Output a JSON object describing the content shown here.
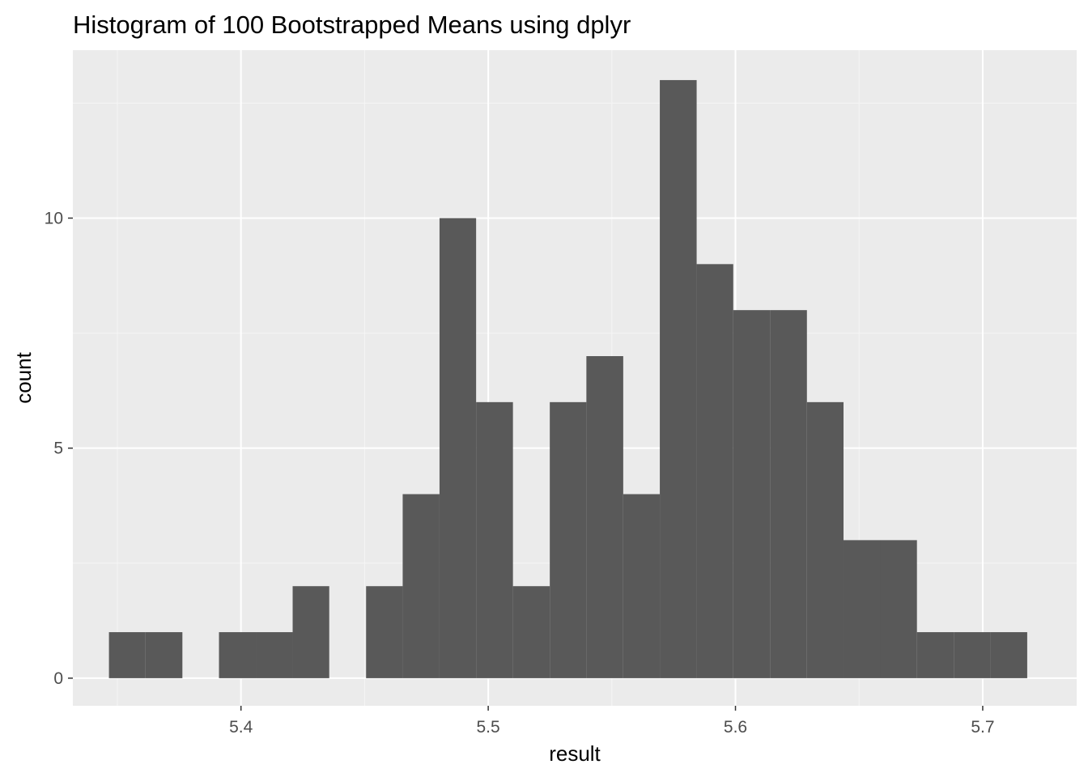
{
  "chart_data": {
    "type": "bar",
    "subtype": "histogram",
    "title": "Histogram of 100 Bootstrapped Means using dplyr",
    "xlabel": "result",
    "ylabel": "count",
    "xlim": [
      5.332,
      5.738
    ],
    "ylim": [
      -0.6,
      13.65
    ],
    "xticks": [
      5.4,
      5.5,
      5.6,
      5.7
    ],
    "xtick_labels": [
      "5.4",
      "5.5",
      "5.6",
      "5.7"
    ],
    "yticks": [
      0,
      5,
      10
    ],
    "ytick_labels": [
      "0",
      "5",
      "10"
    ],
    "x_minor_breaks": [
      5.35,
      5.45,
      5.55,
      5.65
    ],
    "y_minor_breaks": [
      2.5,
      7.5,
      12.5
    ],
    "grid": true,
    "legend": "none",
    "bin_edges": [
      5.3466,
      5.3614,
      5.3763,
      5.3911,
      5.406,
      5.4209,
      5.4357,
      5.4506,
      5.4654,
      5.4803,
      5.4951,
      5.51,
      5.5249,
      5.5397,
      5.5546,
      5.5694,
      5.5843,
      5.5991,
      5.614,
      5.6289,
      5.6437,
      5.6586,
      5.6734,
      5.6883,
      5.7031,
      5.718
    ],
    "counts": [
      1,
      1,
      0,
      1,
      1,
      2,
      0,
      2,
      4,
      10,
      6,
      2,
      6,
      7,
      4,
      13,
      9,
      8,
      8,
      6,
      3,
      3,
      1,
      1,
      1
    ],
    "colors": {
      "bar_fill": "#595959",
      "panel_background": "#ebebeb",
      "grid_major": "#ffffff",
      "grid_minor": "#f5f5f5",
      "tick": "#333333"
    }
  }
}
